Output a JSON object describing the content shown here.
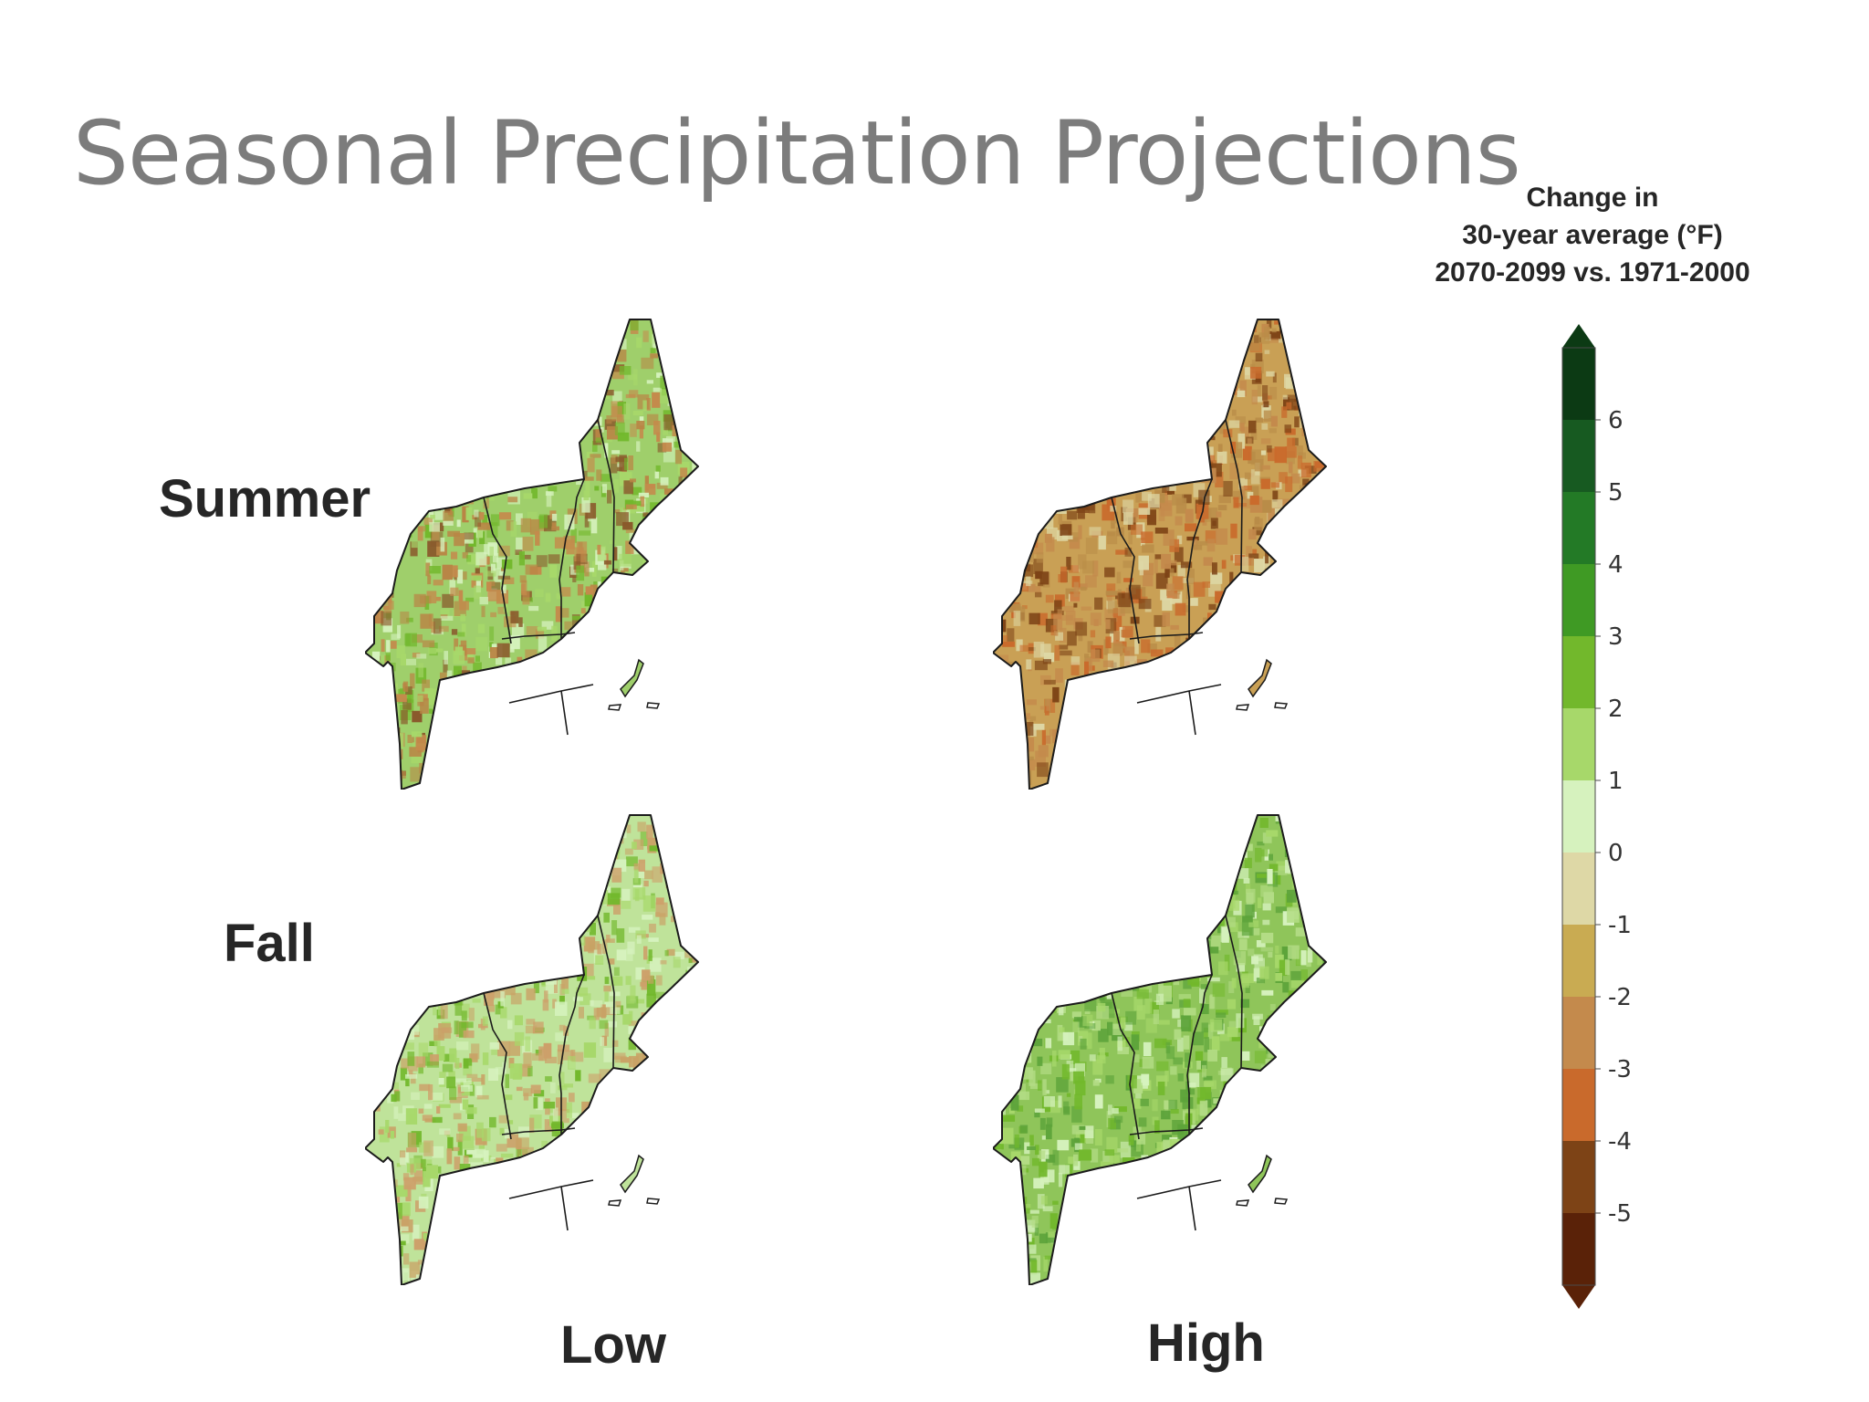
{
  "slide": {
    "title": "Seasonal Precipitation Projections"
  },
  "rows": {
    "summer": "Summer",
    "fall": "Fall"
  },
  "columns": {
    "low": "Low",
    "high": "High"
  },
  "legend": {
    "title_lines": [
      "Change in",
      "30-year average (°F)",
      "2070-2099 vs. 1971-2000"
    ],
    "tick_labels": [
      "6",
      "5",
      "4",
      "3",
      "2",
      "1",
      "0",
      "-1",
      "-2",
      "-3",
      "-4",
      "-5"
    ],
    "bins": [
      {
        "range": ">6",
        "color": "#0c3a14"
      },
      {
        "range": "5 to 6",
        "color": "#175a21"
      },
      {
        "range": "4 to 5",
        "color": "#237a26"
      },
      {
        "range": "3 to 4",
        "color": "#3f9a24"
      },
      {
        "range": "2 to 3",
        "color": "#72b82c"
      },
      {
        "range": "1 to 2",
        "color": "#a7d86a"
      },
      {
        "range": "0 to 1",
        "color": "#d6f2be"
      },
      {
        "range": "-1 to 0",
        "color": "#ded8a6"
      },
      {
        "range": "-2 to -1",
        "color": "#c9ab52"
      },
      {
        "range": "-3 to -2",
        "color": "#c48a4c"
      },
      {
        "range": "-4 to -3",
        "color": "#c96a2c"
      },
      {
        "range": "-5 to -4",
        "color": "#7d4316"
      },
      {
        "range": "<-5",
        "color": "#5a2208"
      }
    ]
  },
  "maps": [
    {
      "id": "summer-low",
      "season": "Summer",
      "scenario": "Low",
      "base_color": "#9fcf6b",
      "speckle_colors": [
        "#b98545",
        "#c48a4c",
        "#72b82c",
        "#a7d86a",
        "#d6f2be",
        "#8a5a2c"
      ]
    },
    {
      "id": "summer-high",
      "season": "Summer",
      "scenario": "High",
      "base_color": "#c9a055",
      "speckle_colors": [
        "#c96a2c",
        "#7d4316",
        "#ded8a6",
        "#c48a4c",
        "#b98c48"
      ]
    },
    {
      "id": "fall-low",
      "season": "Fall",
      "scenario": "Low",
      "base_color": "#bfe39a",
      "speckle_colors": [
        "#d6f2be",
        "#c9a266",
        "#a7d86a",
        "#72b82c",
        "#cda06a"
      ]
    },
    {
      "id": "fall-high",
      "season": "Fall",
      "scenario": "High",
      "base_color": "#8fc55a",
      "speckle_colors": [
        "#72b82c",
        "#d6f2be",
        "#a7d86a",
        "#5ca33a",
        "#b3dc85"
      ]
    }
  ]
}
